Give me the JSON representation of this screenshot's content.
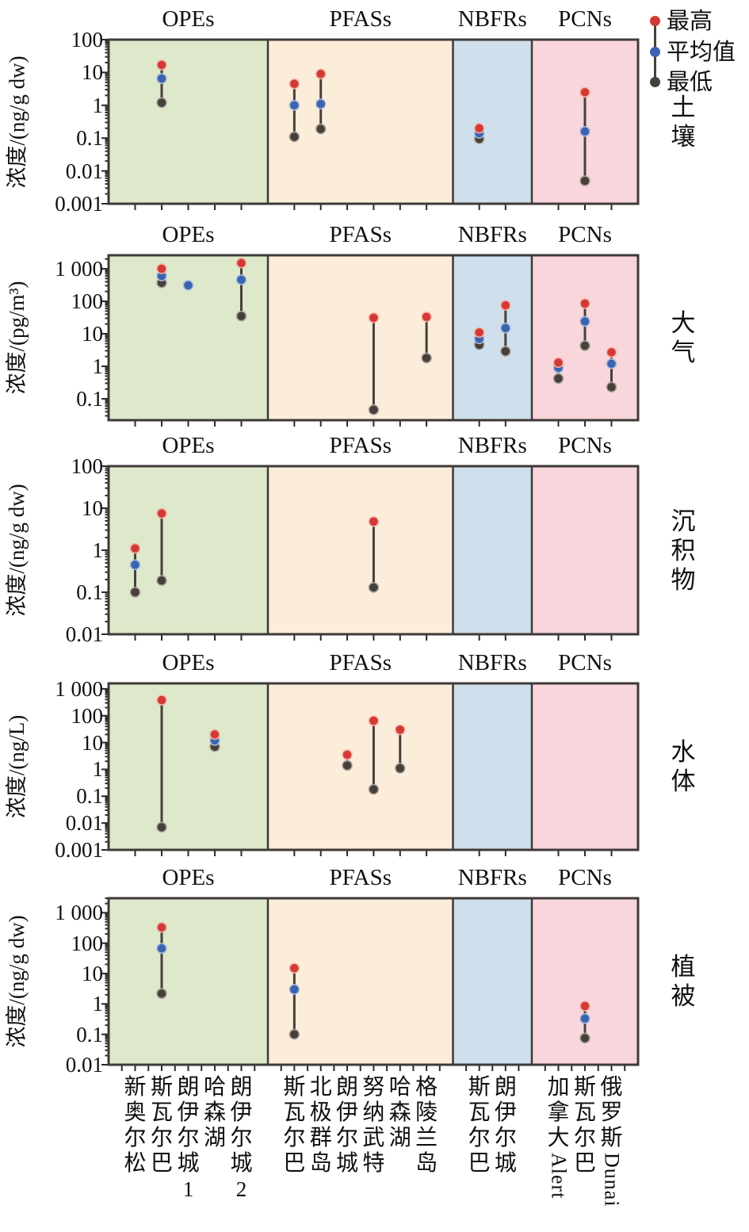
{
  "legend": {
    "items": [
      {
        "key": "max",
        "label": "最高",
        "color": "#d23a36"
      },
      {
        "key": "mean",
        "label": "平均值",
        "color": "#3c63ad"
      },
      {
        "key": "min",
        "label": "最低",
        "color": "#46403a"
      }
    ]
  },
  "colors": {
    "max": "#d23a36",
    "mean": "#3c63ad",
    "min": "#46403a",
    "max_halo": "#f2b1a6",
    "mean_halo": "#a9bcdf",
    "min_halo": "#aaa39b",
    "stem": "#46403a",
    "border": "#3e3a38",
    "tick": "#2a2a2a",
    "group_fills": [
      "#dde9ca",
      "#fcecda",
      "#cfe0ec",
      "#f8d6db"
    ]
  },
  "chart_data": {
    "type": "scatter",
    "subtype": "min-mean-max vertical range dot plot, shared category axis, log10 y axes",
    "groups": [
      {
        "name": "OPEs",
        "sites": [
          "新奥尔松",
          "斯瓦尔巴",
          "朗伊尔城1",
          "哈森湖",
          "朗伊尔城2"
        ]
      },
      {
        "name": "PFASs",
        "sites": [
          "斯瓦尔巴",
          "北极群岛",
          "朗伊尔城",
          "努纳武特",
          "哈森湖",
          "格陵兰岛"
        ]
      },
      {
        "name": "NBFRs",
        "sites": [
          "斯瓦尔巴",
          "朗伊尔城"
        ]
      },
      {
        "name": "PCNs",
        "sites": [
          "加拿大Alert",
          "斯瓦尔巴",
          "俄罗斯Dunai"
        ]
      }
    ],
    "panels": [
      {
        "medium": "土壤",
        "ylabel": "浓度/(ng/g dw)",
        "ylim": [
          0.001,
          100
        ],
        "yticks": [
          "100",
          "10",
          "1",
          "0.1",
          "0.01",
          "0.001"
        ],
        "points": [
          {
            "group": "OPEs",
            "site": "斯瓦尔巴",
            "max": 17,
            "mean": 6.5,
            "min": 1.2
          },
          {
            "group": "PFASs",
            "site": "斯瓦尔巴",
            "max": 4.5,
            "mean": 1.0,
            "min": 0.11
          },
          {
            "group": "PFASs",
            "site": "北极群岛",
            "max": 9,
            "mean": 1.1,
            "min": 0.19
          },
          {
            "group": "NBFRs",
            "site": "斯瓦尔巴",
            "max": 0.2,
            "mean": 0.14,
            "min": 0.095
          },
          {
            "group": "PCNs",
            "site": "斯瓦尔巴",
            "max": 2.5,
            "mean": 0.16,
            "min": 0.005
          }
        ]
      },
      {
        "medium": "大气",
        "ylabel": "浓度/(pg/m³)",
        "ylim": [
          0.022,
          2600
        ],
        "yticks": [
          "1 000",
          "100",
          "10",
          "1",
          "0.1"
        ],
        "points": [
          {
            "group": "OPEs",
            "site": "斯瓦尔巴",
            "max": 1000,
            "mean": 600,
            "min": 370
          },
          {
            "group": "OPEs",
            "site": "朗伊尔城1",
            "mean": 310
          },
          {
            "group": "OPEs",
            "site": "朗伊尔城2",
            "max": 1500,
            "mean": 460,
            "min": 35
          },
          {
            "group": "PFASs",
            "site": "努纳武特",
            "max": 31,
            "min": 0.046
          },
          {
            "group": "PFASs",
            "site": "格陵兰岛",
            "max": 33,
            "min": 1.8
          },
          {
            "group": "NBFRs",
            "site": "斯瓦尔巴",
            "max": 11,
            "mean": 7,
            "min": 4.6
          },
          {
            "group": "NBFRs",
            "site": "朗伊尔城",
            "max": 75,
            "mean": 15,
            "min": 2.9
          },
          {
            "group": "PCNs",
            "site": "加拿大Alert",
            "max": 1.3,
            "mean": 0.9,
            "min": 0.42
          },
          {
            "group": "PCNs",
            "site": "斯瓦尔巴",
            "max": 85,
            "mean": 24,
            "min": 4.3
          },
          {
            "group": "PCNs",
            "site": "俄罗斯Dunai",
            "max": 2.7,
            "mean": 1.2,
            "min": 0.23
          }
        ]
      },
      {
        "medium": "沉积物",
        "ylabel": "浓度/(ng/g dw)",
        "ylim": [
          0.01,
          100
        ],
        "yticks": [
          "100",
          "10",
          "1",
          "0.1",
          "0.01"
        ],
        "points": [
          {
            "group": "OPEs",
            "site": "新奥尔松",
            "max": 1.1,
            "mean": 0.45,
            "min": 0.1
          },
          {
            "group": "OPEs",
            "site": "斯瓦尔巴",
            "max": 7.5,
            "min": 0.19
          },
          {
            "group": "PFASs",
            "site": "努纳武特",
            "max": 4.8,
            "min": 0.13
          }
        ]
      },
      {
        "medium": "水体",
        "ylabel": "浓度/(ng/L)",
        "ylim": [
          0.001,
          1600
        ],
        "yticks": [
          "1 000",
          "100",
          "10",
          "1",
          "0.1",
          "0.01",
          "0.001"
        ],
        "points": [
          {
            "group": "OPEs",
            "site": "斯瓦尔巴",
            "max": 380,
            "min": 0.007
          },
          {
            "group": "OPEs",
            "site": "哈森湖",
            "max": 20,
            "mean": 12,
            "min": 7
          },
          {
            "group": "PFASs",
            "site": "朗伊尔城",
            "max": 3.5,
            "min": 1.4
          },
          {
            "group": "PFASs",
            "site": "努纳武特",
            "max": 65,
            "min": 0.18
          },
          {
            "group": "PFASs",
            "site": "哈森湖",
            "max": 30,
            "min": 1.1
          }
        ]
      },
      {
        "medium": "植被",
        "ylabel": "浓度/(ng/g dw)",
        "ylim": [
          0.01,
          3000
        ],
        "yticks": [
          "1 000",
          "100",
          "10",
          "1",
          "0.1",
          "0.01"
        ],
        "points": [
          {
            "group": "OPEs",
            "site": "斯瓦尔巴",
            "max": 330,
            "mean": 67,
            "min": 2.2
          },
          {
            "group": "PFASs",
            "site": "斯瓦尔巴",
            "max": 15,
            "mean": 3.0,
            "min": 0.1
          },
          {
            "group": "PCNs",
            "site": "斯瓦尔巴",
            "max": 0.85,
            "mean": 0.33,
            "min": 0.075
          }
        ]
      }
    ]
  }
}
